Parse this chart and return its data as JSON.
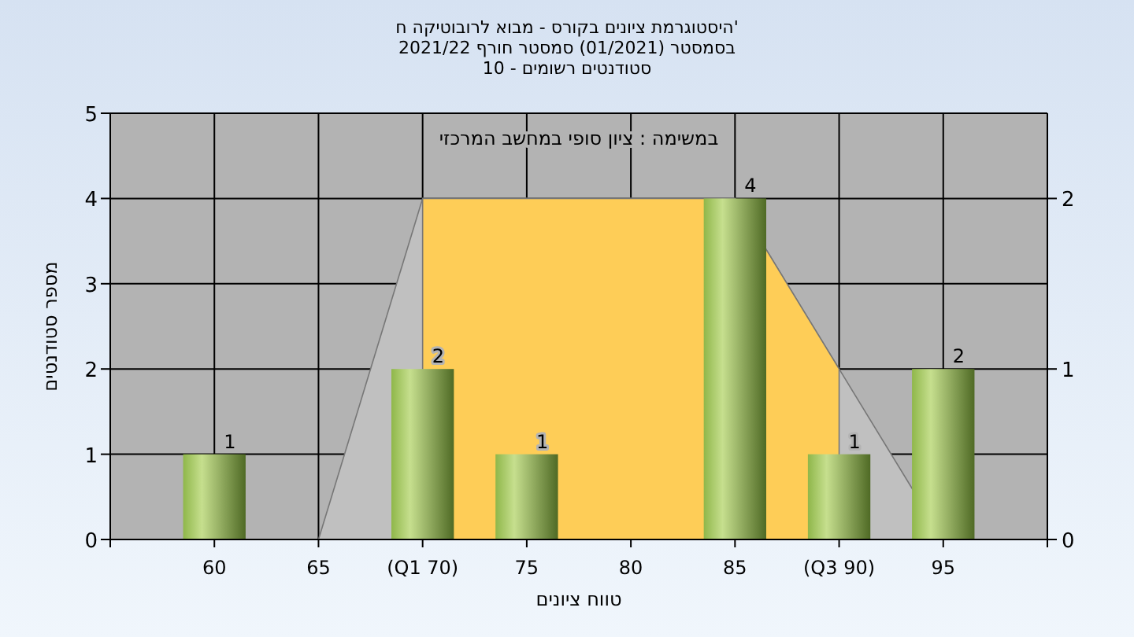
{
  "chart_data": {
    "type": "bar",
    "title": "היסטוגרמת ציונים בקורס - מבוא לרובוטיקה ח'",
    "subtitle": "בסמסטר  (01/2021)  סמסטר חורף 2021/22\nסטודנטים רשומים - 10",
    "annotations": [
      "במשימה : ציון סופי במחשב המרכזי"
    ],
    "xlabel": "טווח ציונים",
    "ylabel": "מספר סטודנטים",
    "xlim": [
      55,
      100
    ],
    "xticks": [
      60,
      65,
      {
        "value": 70,
        "label": "(Q1 70)"
      },
      75,
      80,
      85,
      {
        "value": 90,
        "label": "(Q3 90)"
      },
      95
    ],
    "ylim": [
      0,
      5
    ],
    "yticks": [
      0,
      1,
      2,
      3,
      4,
      5
    ],
    "y2lim": [
      0,
      2.5
    ],
    "y2ticks": [
      0,
      1,
      2
    ],
    "grid": true,
    "series": [
      {
        "type": "area",
        "axis": "y2",
        "color": "#c0c0c0",
        "x": [
          65,
          70,
          85,
          90,
          95
        ],
        "values": [
          0,
          2,
          2,
          1,
          0
        ]
      },
      {
        "type": "area",
        "axis": "y2",
        "color": "#fecd57",
        "x": [
          70,
          85,
          90
        ],
        "values": [
          2,
          2,
          1
        ]
      },
      {
        "color": "#8fb74a",
        "x": [
          60,
          65,
          70,
          75,
          80,
          85,
          90,
          95
        ],
        "values": [
          1,
          0,
          2,
          1,
          0,
          4,
          1,
          2
        ],
        "value_labels": [
          "1",
          null,
          "2",
          "1",
          null,
          "4",
          "1",
          "2"
        ]
      }
    ]
  }
}
